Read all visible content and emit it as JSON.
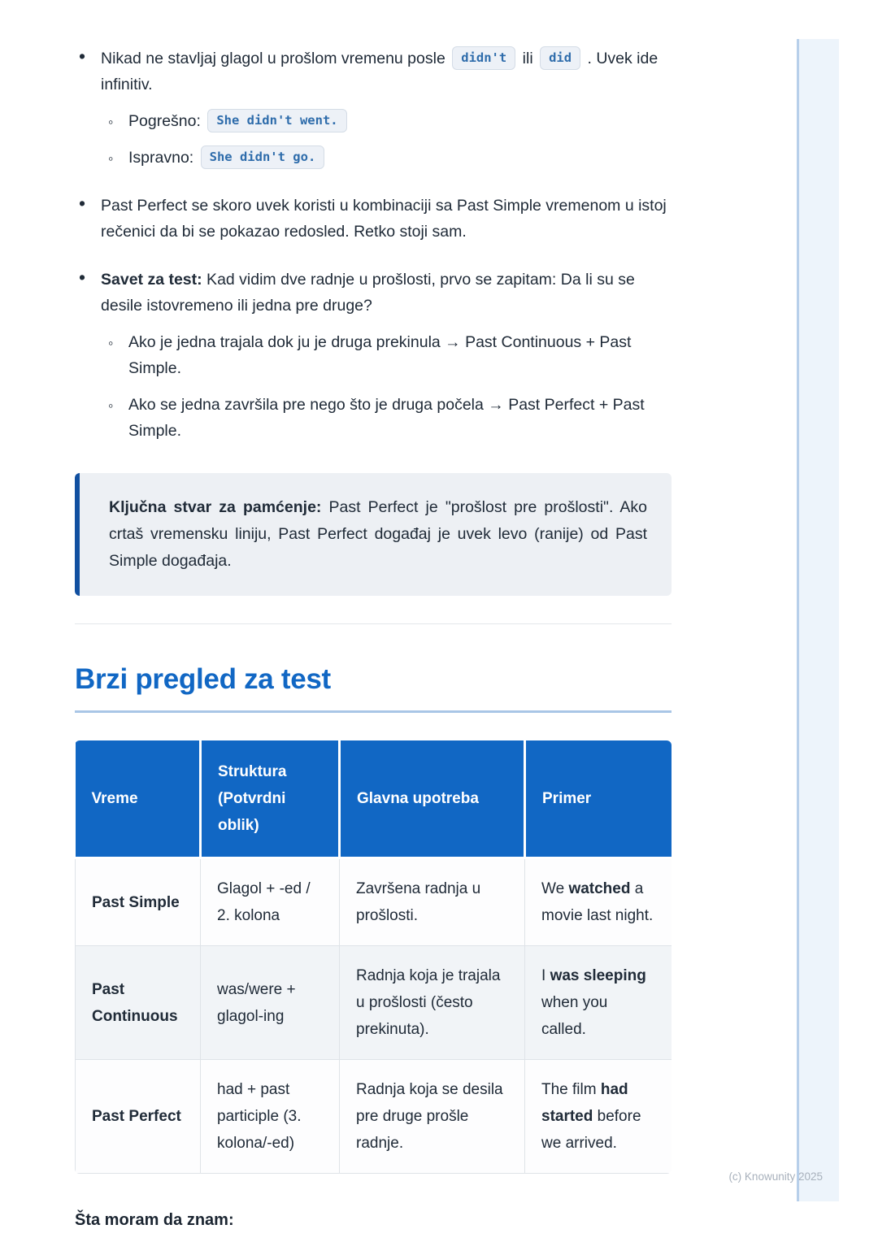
{
  "colors": {
    "accent_blue": "#1167c4",
    "heading_blue": "#1167c4",
    "heading_underline": "#a9c6e6",
    "callout_border": "#1150a0",
    "callout_bg": "#edf0f4",
    "chip_text": "#2e6cab",
    "chip_bg": "#edf1f7",
    "table_header_bg": "#1167c4",
    "table_row_alt_bg": "#f1f4f7",
    "side_strip_bg": "#edf4fb",
    "body_text": "#202b38",
    "watermark_gray": "#a8b1bc"
  },
  "bullets": [
    {
      "runs": [
        {
          "t": "Nikad ne stavljaj glagol u prošlom vremenu posle "
        },
        {
          "t": "didn't",
          "c": true
        },
        {
          "t": " ili "
        },
        {
          "t": "did",
          "c": true
        },
        {
          "t": " . Uvek ide infinitiv."
        }
      ],
      "subs": [
        [
          {
            "t": "Pogrešno: "
          },
          {
            "t": "She didn't went.",
            "c": true
          }
        ],
        [
          {
            "t": "Ispravno: "
          },
          {
            "t": "She didn't go.",
            "c": true
          }
        ]
      ]
    },
    {
      "runs": [
        {
          "t": "Past Perfect se skoro uvek koristi u kombinaciji sa Past Simple vremenom u istoj rečenici da bi se pokazao redosled. Retko stoji sam."
        }
      ],
      "subs": []
    },
    {
      "runs": [
        {
          "t": "Savet za test:",
          "b": true
        },
        {
          "t": " Kad vidim dve radnje u prošlosti, prvo se zapitam: Da li su se desile istovremeno ili jedna pre druge?"
        }
      ],
      "subs": [
        [
          {
            "t": "Ako je jedna trajala dok ju je druga prekinula → Past Continuous + Past Simple."
          }
        ],
        [
          {
            "t": "Ako se jedna završila pre nego što je druga počela → Past Perfect + Past Simple."
          }
        ]
      ]
    }
  ],
  "callout": {
    "runs": [
      {
        "t": "Ključna stvar za pamćenje:",
        "b": true
      },
      {
        "t": " Past Perfect je \"prošlost pre prošlosti\". Ako crtaš vremensku liniju, Past Perfect događaj je uvek levo (ranije) od Past Simple događaja."
      }
    ]
  },
  "section": {
    "heading": "Brzi pregled za test"
  },
  "table": {
    "headers": [
      "Vreme",
      "Struktura (Potvrdni oblik)",
      "Glavna upotreba",
      "Primer"
    ],
    "rows": [
      {
        "cells": [
          [
            {
              "t": "Past Simple",
              "b": true
            }
          ],
          [
            {
              "t": "Glagol + -ed / 2. kolona"
            }
          ],
          [
            {
              "t": "Završena radnja u prošlosti."
            }
          ],
          [
            {
              "t": "We "
            },
            {
              "t": "watched",
              "b": true
            },
            {
              "t": " a movie last night."
            }
          ]
        ]
      },
      {
        "cells": [
          [
            {
              "t": "Past Continuous",
              "b": true
            }
          ],
          [
            {
              "t": "was/were + glagol-ing"
            }
          ],
          [
            {
              "t": "Radnja koja je trajala u prošlosti (često prekinuta)."
            }
          ],
          [
            {
              "t": "I "
            },
            {
              "t": "was sleeping",
              "b": true
            },
            {
              "t": " when you called."
            }
          ]
        ]
      },
      {
        "cells": [
          [
            {
              "t": "Past Perfect",
              "b": true
            }
          ],
          [
            {
              "t": "had + past participle (3. kolona/-ed)"
            }
          ],
          [
            {
              "t": "Radnja koja se desila pre druge prošle radnje."
            }
          ],
          [
            {
              "t": "The film "
            },
            {
              "t": "had started",
              "b": true
            },
            {
              "t": " before we arrived."
            }
          ]
        ]
      }
    ]
  },
  "footer": {
    "next_heading": "Šta moram da znam:",
    "watermark": "(c) Knowunity 2025"
  },
  "glyphs": {
    "main_bullet": "•",
    "sub_bullet": "◦"
  }
}
